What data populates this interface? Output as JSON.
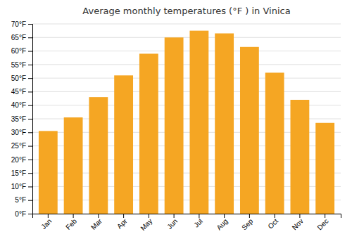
{
  "chart_data": {
    "type": "bar",
    "title": "Average monthly temperatures (°F ) in Vinica",
    "categories": [
      "Jan",
      "Feb",
      "Mar",
      "Apr",
      "May",
      "Jun",
      "Jul",
      "Aug",
      "Sep",
      "Oct",
      "Nov",
      "Dec"
    ],
    "values": [
      30.5,
      35.5,
      43.0,
      51.0,
      59.0,
      65.0,
      67.5,
      66.5,
      61.5,
      52.0,
      42.0,
      33.5
    ],
    "color": "#F5A623",
    "ylim": [
      0,
      70
    ],
    "yticks": [
      {
        "value": 0,
        "label": "0°F"
      },
      {
        "value": 5,
        "label": "5°F"
      },
      {
        "value": 10,
        "label": "10°F"
      },
      {
        "value": 15,
        "label": "15°F"
      },
      {
        "value": 20,
        "label": "20°F"
      },
      {
        "value": 25,
        "label": "25°F"
      },
      {
        "value": 30,
        "label": "30°F"
      },
      {
        "value": 35,
        "label": "35°F"
      },
      {
        "value": 40,
        "label": "40°F"
      },
      {
        "value": 45,
        "label": "45°F"
      },
      {
        "value": 50,
        "label": "50°F"
      },
      {
        "value": 55,
        "label": "55°F"
      },
      {
        "value": 60,
        "label": "60°F"
      },
      {
        "value": 65,
        "label": "65°F"
      },
      {
        "value": 70,
        "label": "70°F"
      }
    ],
    "grid": true
  }
}
